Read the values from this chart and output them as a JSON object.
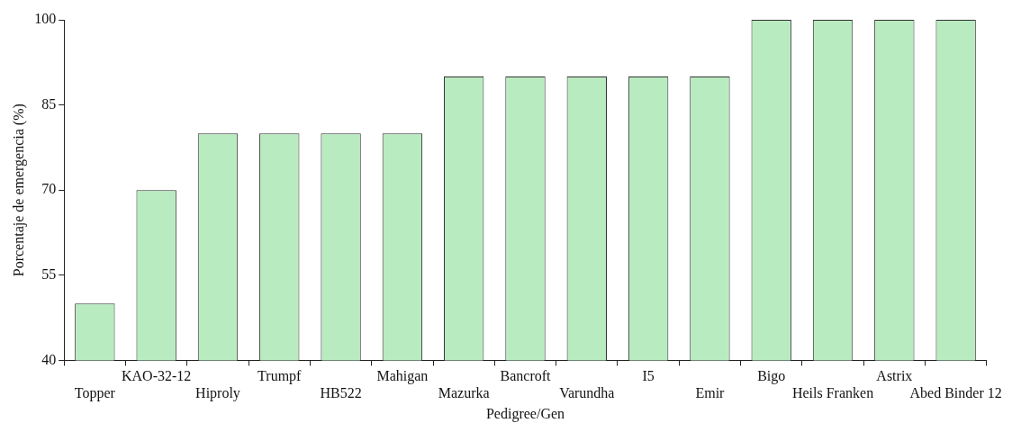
{
  "chart_data": {
    "type": "bar",
    "xlabel": "Pedigree/Gen",
    "ylabel": "Porcentaje de emergencia (%)",
    "categories": [
      "Topper",
      "KAO-32-12",
      "Hiproly",
      "Trumpf",
      "HB522",
      "Mahigan",
      "Mazurka",
      "Bancroft",
      "Varundha",
      "I5",
      "Emir",
      "Bigo",
      "Heils Franken",
      "Astrix",
      "Abed Binder 12"
    ],
    "values": [
      50,
      70,
      80,
      80,
      80,
      80,
      90,
      90,
      90,
      90,
      90,
      100,
      100,
      100,
      100
    ],
    "color": "#b9ebc1",
    "ylim": [
      40,
      100
    ],
    "yticks": [
      40,
      55,
      70,
      85,
      100
    ],
    "grid": false,
    "legend": false
  }
}
